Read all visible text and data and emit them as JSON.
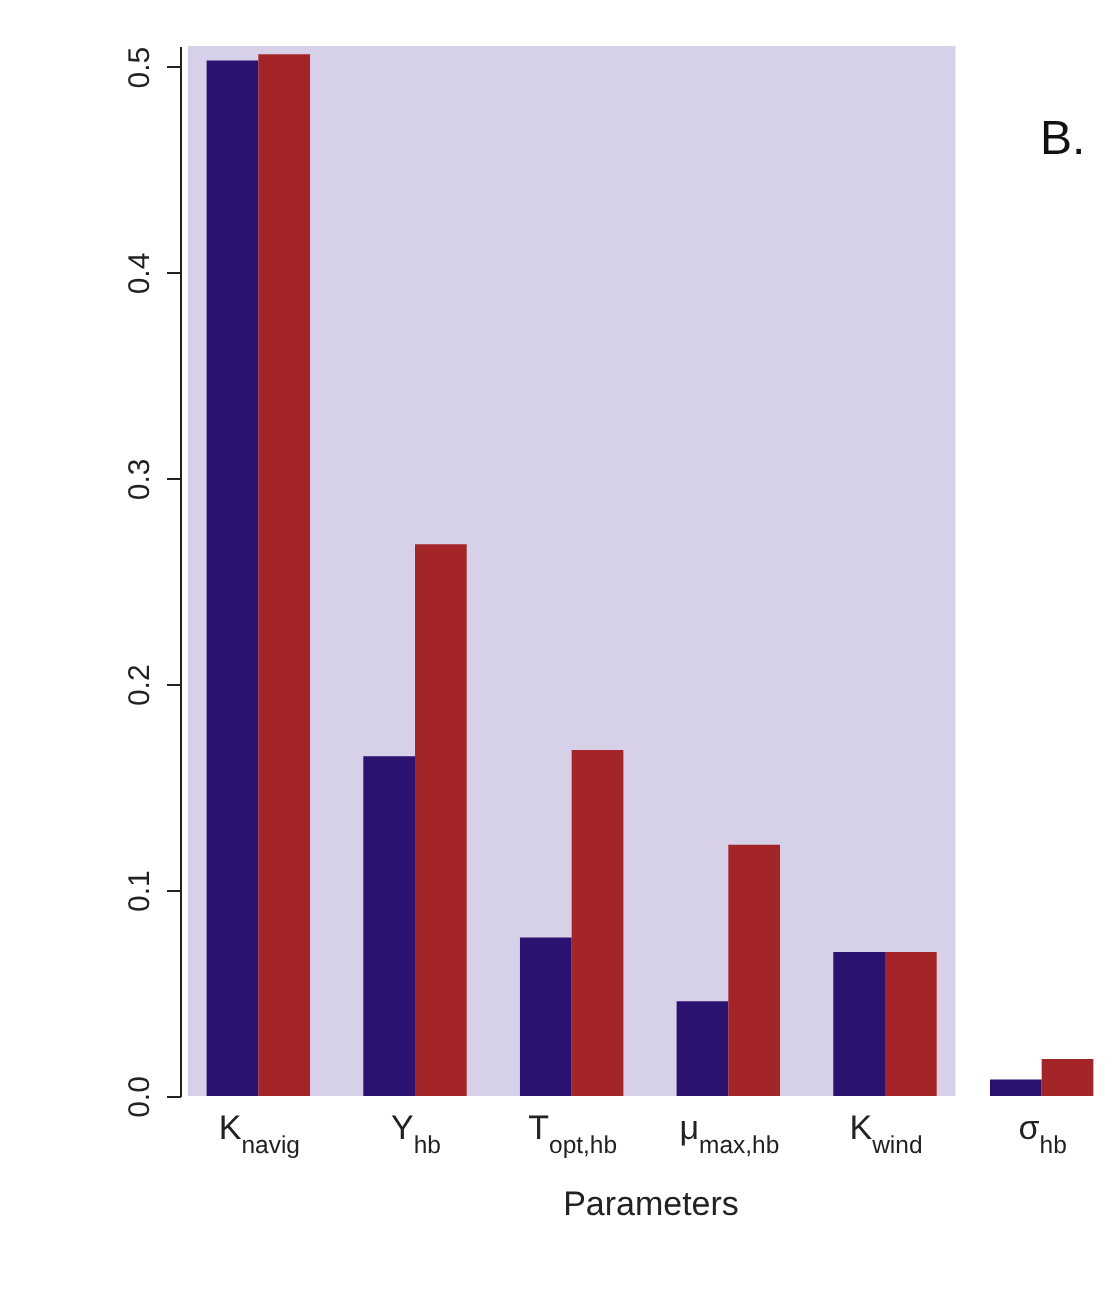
{
  "chart_data": {
    "type": "bar",
    "xlabel": "Parameters",
    "annotations": [
      "B."
    ],
    "categories": [
      "K$_{navig}$",
      "Y$_{hb}$",
      "T$_{opt,hb}$",
      "μ$_{max,hb}$",
      "K$_{wind}$",
      "σ$_{hb}$"
    ],
    "series": [
      {
        "color": "#2b1170",
        "values": [
          0.503,
          0.165,
          0.077,
          0.046,
          0.07,
          0.008
        ]
      },
      {
        "color": "#a32527",
        "values": [
          0.506,
          0.268,
          0.168,
          0.122,
          0.07,
          0.018
        ]
      }
    ],
    "ylim": [
      0,
      0.51
    ],
    "yticks": [
      {
        "value": 0,
        "label": "0.0"
      },
      0.1,
      0.2,
      0.3,
      0.4,
      0.5
    ],
    "bands": [
      {
        "axis": "x",
        "from": "K$_{navig}$",
        "to": "K$_{wind}$",
        "color": "#d6d1e8"
      }
    ]
  }
}
